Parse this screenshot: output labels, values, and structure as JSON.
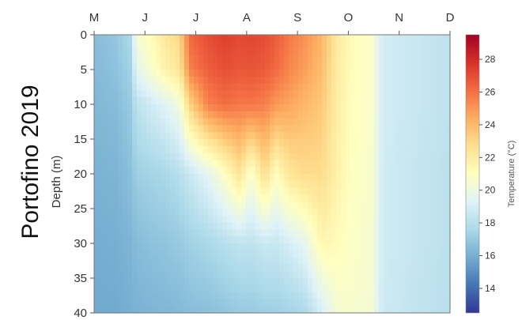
{
  "chart_data": {
    "type": "heatmap",
    "title": "Portofino 2019",
    "ylabel": "Depth (m)",
    "ylim": [
      0,
      40
    ],
    "y_ticks": [
      0,
      5,
      10,
      15,
      20,
      25,
      30,
      35,
      40
    ],
    "x_months": [
      "M",
      "J",
      "J",
      "A",
      "S",
      "O",
      "N",
      "D"
    ],
    "colorbar": {
      "label": "Temperature (°C)",
      "range": [
        12.5,
        29.5
      ],
      "ticks": [
        14,
        16,
        18,
        20,
        22,
        24,
        26,
        28
      ],
      "colors": [
        "#313695",
        "#4575b4",
        "#74add1",
        "#abd9e9",
        "#e0f3f8",
        "#ffffbf",
        "#fee090",
        "#fdae61",
        "#f46d43",
        "#d73027",
        "#a50026"
      ]
    },
    "profiles": [
      {
        "x": 0.0,
        "depth": [
          0,
          5,
          10,
          20,
          30,
          40
        ],
        "temp": [
          16.5,
          16.4,
          16.3,
          16.1,
          15.9,
          15.8
        ]
      },
      {
        "x": 0.06,
        "depth": [
          0,
          5,
          10,
          20,
          30,
          40
        ],
        "temp": [
          16.9,
          16.7,
          16.5,
          16.2,
          16.0,
          15.8
        ]
      },
      {
        "x": 0.1,
        "depth": [
          0,
          5,
          10,
          20,
          30,
          40
        ],
        "temp": [
          17.6,
          17.3,
          17.0,
          16.6,
          16.2,
          16.0
        ]
      },
      {
        "x": 0.12,
        "depth": [
          0,
          5,
          10,
          20,
          30,
          40
        ],
        "temp": [
          20.5,
          19.6,
          18.2,
          17.2,
          16.5,
          16.1
        ]
      },
      {
        "x": 0.16,
        "depth": [
          0,
          5,
          10,
          20,
          30,
          40
        ],
        "temp": [
          21.2,
          20.6,
          18.8,
          17.4,
          16.7,
          16.2
        ]
      },
      {
        "x": 0.2,
        "depth": [
          0,
          5,
          10,
          20,
          30,
          40
        ],
        "temp": [
          22.3,
          21.7,
          19.4,
          17.6,
          16.8,
          16.3
        ]
      },
      {
        "x": 0.24,
        "depth": [
          0,
          5,
          10,
          20,
          30,
          40
        ],
        "temp": [
          23.0,
          22.4,
          20.2,
          18.0,
          17.0,
          16.4
        ]
      },
      {
        "x": 0.27,
        "depth": [
          0,
          5,
          10,
          20,
          30,
          40
        ],
        "temp": [
          26.3,
          25.6,
          23.2,
          18.6,
          17.3,
          16.5
        ]
      },
      {
        "x": 0.32,
        "depth": [
          0,
          5,
          10,
          20,
          30,
          40
        ],
        "temp": [
          27.0,
          26.5,
          25.6,
          19.5,
          17.6,
          16.6
        ]
      },
      {
        "x": 0.37,
        "depth": [
          0,
          5,
          10,
          20,
          30,
          40
        ],
        "temp": [
          27.4,
          26.9,
          26.1,
          21.0,
          18.0,
          16.8
        ]
      },
      {
        "x": 0.41,
        "depth": [
          0,
          5,
          10,
          20,
          30,
          40
        ],
        "temp": [
          27.1,
          26.7,
          25.8,
          22.5,
          18.3,
          17.0
        ]
      },
      {
        "x": 0.44,
        "depth": [
          0,
          5,
          10,
          20,
          30,
          40
        ],
        "temp": [
          27.2,
          26.8,
          25.9,
          20.5,
          18.2,
          17.0
        ]
      },
      {
        "x": 0.48,
        "depth": [
          0,
          5,
          10,
          20,
          30,
          40
        ],
        "temp": [
          27.0,
          26.6,
          25.6,
          22.8,
          18.6,
          17.2
        ]
      },
      {
        "x": 0.51,
        "depth": [
          0,
          5,
          10,
          20,
          30,
          40
        ],
        "temp": [
          26.6,
          26.2,
          25.0,
          21.0,
          18.5,
          17.2
        ]
      },
      {
        "x": 0.55,
        "depth": [
          0,
          5,
          10,
          20,
          30,
          40
        ],
        "temp": [
          25.8,
          25.4,
          24.6,
          22.4,
          19.0,
          17.4
        ]
      },
      {
        "x": 0.59,
        "depth": [
          0,
          5,
          10,
          20,
          30,
          40
        ],
        "temp": [
          25.2,
          24.8,
          24.1,
          22.8,
          19.6,
          17.6
        ]
      },
      {
        "x": 0.64,
        "depth": [
          0,
          5,
          10,
          20,
          30,
          40
        ],
        "temp": [
          24.1,
          23.9,
          23.5,
          22.8,
          21.5,
          19.0
        ]
      },
      {
        "x": 0.68,
        "depth": [
          0,
          5,
          10,
          20,
          30,
          40
        ],
        "temp": [
          22.2,
          22.1,
          22.0,
          21.8,
          21.2,
          20.4
        ]
      },
      {
        "x": 0.72,
        "depth": [
          0,
          5,
          10,
          20,
          30,
          40
        ],
        "temp": [
          21.2,
          21.2,
          21.1,
          21.0,
          20.8,
          20.6
        ]
      },
      {
        "x": 0.78,
        "depth": [
          0,
          5,
          10,
          20,
          30,
          40
        ],
        "temp": [
          20.7,
          20.7,
          20.7,
          20.6,
          20.5,
          20.4
        ]
      },
      {
        "x": 0.81,
        "depth": [
          0,
          5,
          10,
          20,
          30,
          40
        ],
        "temp": [
          18.9,
          18.9,
          18.9,
          18.8,
          18.8,
          18.7
        ]
      },
      {
        "x": 0.88,
        "depth": [
          0,
          5,
          10,
          20,
          30,
          40
        ],
        "temp": [
          18.6,
          18.6,
          18.6,
          18.5,
          18.5,
          18.4
        ]
      },
      {
        "x": 1.0,
        "depth": [
          0,
          5,
          10,
          20,
          30,
          40
        ],
        "temp": [
          18.2,
          18.2,
          18.2,
          18.1,
          18.1,
          18.0
        ]
      }
    ]
  }
}
